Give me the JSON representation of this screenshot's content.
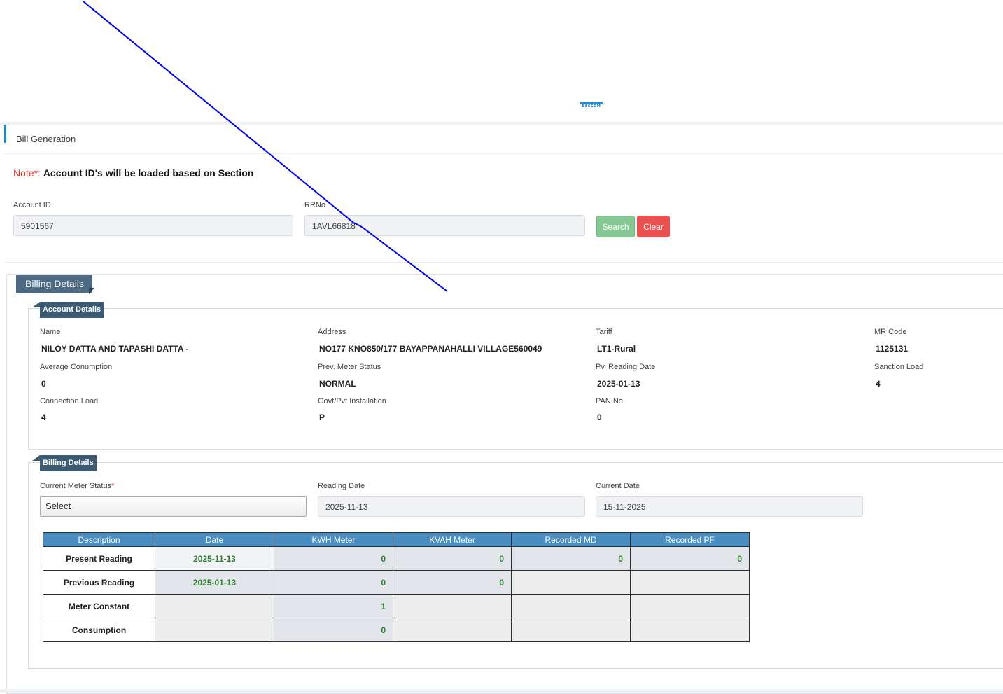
{
  "brand": {
    "logo_text": "BESCOM",
    "accent": "#1e88c7"
  },
  "page": {
    "title": "Bill Generation"
  },
  "note": {
    "prefix": "Note",
    "star": "*:",
    "text": "Account ID's will be loaded based on Section"
  },
  "search_form": {
    "account_id_label": "Account ID",
    "account_id_value": "5901567",
    "rrno_label": "RRNo",
    "rrno_value": "1AVL66818",
    "search_label": "Search",
    "clear_label": "Clear"
  },
  "billing_section": {
    "title": "Billing Details"
  },
  "account_details": {
    "title": "Account Details",
    "fields": [
      {
        "label": "Name",
        "value": "NILOY DATTA AND TAPASHI DATTA -"
      },
      {
        "label": "Address",
        "value": "NO177 KNO850/177 BAYAPPANAHALLI VILLAGE560049"
      },
      {
        "label": "Tariff",
        "value": "LT1-Rural"
      },
      {
        "label": "MR Code",
        "value": "1125131"
      },
      {
        "label": "Average Conumption",
        "value": "0"
      },
      {
        "label": "Prev. Meter Status",
        "value": "NORMAL"
      },
      {
        "label": "Pv. Reading Date",
        "value": "2025-01-13"
      },
      {
        "label": "Sanction Load",
        "value": "4"
      },
      {
        "label": "Connection Load",
        "value": "4"
      },
      {
        "label": "Govt/Pvt Installation",
        "value": "P"
      },
      {
        "label": "PAN No",
        "value": "0"
      }
    ]
  },
  "billing_details": {
    "title": "Billing Details",
    "meter_status_label": "Current Meter Status",
    "required_mark": "*",
    "meter_status_value": "Select",
    "reading_date_label": "Reading Date",
    "reading_date_value": "2025-11-13",
    "current_date_label": "Current Date",
    "current_date_value": "15-11-2025"
  },
  "readings_table": {
    "headers": [
      "Description",
      "Date",
      "KWH Meter",
      "KVAH Meter",
      "Recorded MD",
      "Recorded PF"
    ],
    "rows": [
      {
        "description": "Present Reading",
        "date": "2025-11-13",
        "kwh": "0",
        "kvah": "0",
        "md": "0",
        "pf": "0"
      },
      {
        "description": "Previous Reading",
        "date": "2025-01-13",
        "kwh": "0",
        "kvah": "0",
        "md": "",
        "pf": ""
      },
      {
        "description": "Meter Constant",
        "date": "",
        "kwh": "1",
        "kvah": "",
        "md": "",
        "pf": ""
      },
      {
        "description": "Consumption",
        "date": "",
        "kwh": "0",
        "kvah": "",
        "md": "",
        "pf": ""
      }
    ]
  }
}
